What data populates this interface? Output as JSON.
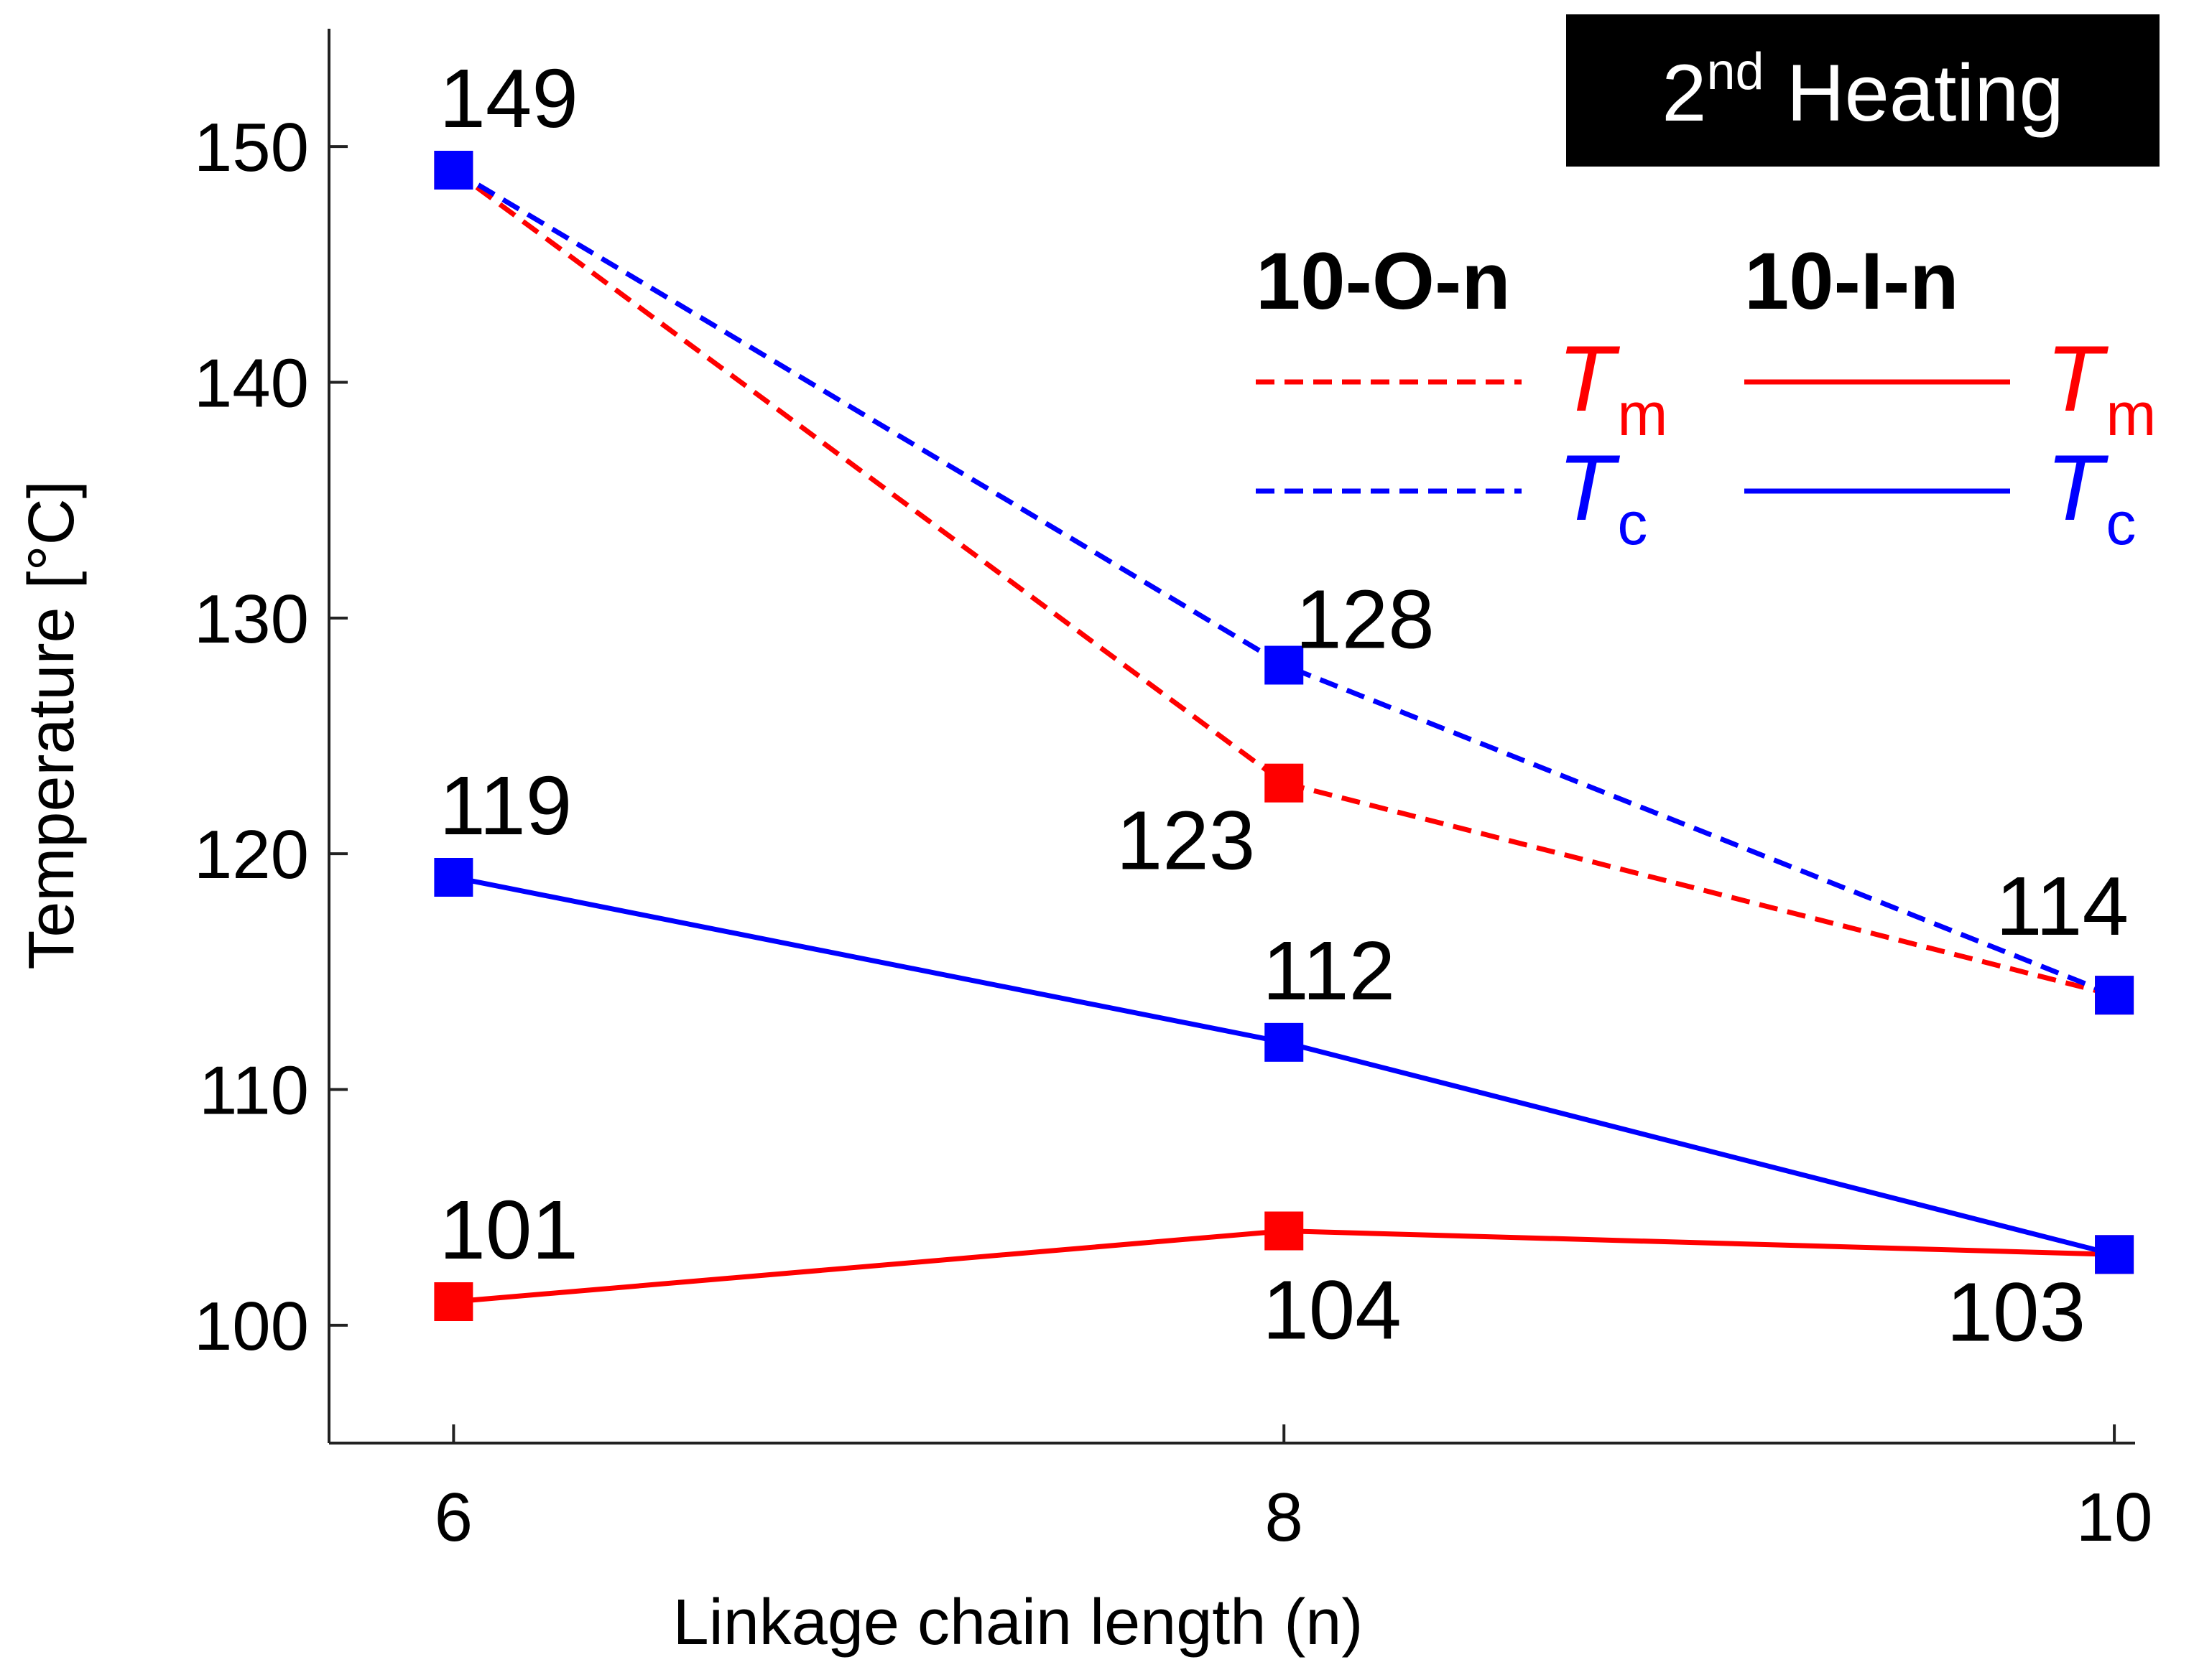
{
  "chart_data": {
    "type": "line",
    "title": {
      "text": "2",
      "sup": "nd",
      "rest": " Heating"
    },
    "xlabel": "Linkage chain length (n)",
    "ylabel": "Temperature [°C]",
    "x": [
      6,
      8,
      10
    ],
    "xlim": [
      5.7,
      10.05
    ],
    "ylim": [
      95,
      155
    ],
    "xticks": [
      "6",
      "8",
      "10"
    ],
    "yticks": [
      "100",
      "110",
      "120",
      "130",
      "140",
      "150"
    ],
    "grid": false,
    "legend_position": "top-right",
    "legend": {
      "groups": [
        {
          "title": "10-O-n",
          "dash": "dashed",
          "entries": [
            {
              "symbol": "T",
              "sub": "m",
              "color": "#ff0000"
            },
            {
              "symbol": "T",
              "sub": "c",
              "color": "#0000ff"
            }
          ]
        },
        {
          "title": "10-I-n",
          "dash": "solid",
          "entries": [
            {
              "symbol": "T",
              "sub": "m",
              "color": "#ff0000"
            },
            {
              "symbol": "T",
              "sub": "c",
              "color": "#0000ff"
            }
          ]
        }
      ]
    },
    "series": [
      {
        "group": "10-O-n",
        "quantity": "Tm",
        "color": "#ff0000",
        "dash": "dashed",
        "values": [
          149,
          123,
          114
        ],
        "labels": [
          "",
          "123",
          ""
        ],
        "label_pos": [
          "",
          "below-left",
          ""
        ]
      },
      {
        "group": "10-O-n",
        "quantity": "Tc",
        "color": "#0000ff",
        "dash": "dashed",
        "values": [
          149,
          128,
          114
        ],
        "labels": [
          "149",
          "128",
          "114"
        ],
        "label_pos": [
          "above",
          "above-right",
          "above-left"
        ]
      },
      {
        "group": "10-I-n",
        "quantity": "Tm",
        "color": "#ff0000",
        "dash": "solid",
        "values": [
          101,
          104,
          103
        ],
        "labels": [
          "101",
          "104",
          "103"
        ],
        "label_pos": [
          "above",
          "below",
          "below-left"
        ]
      },
      {
        "group": "10-I-n",
        "quantity": "Tc",
        "color": "#0000ff",
        "dash": "solid",
        "values": [
          119,
          112,
          103
        ],
        "labels": [
          "119",
          "112",
          ""
        ],
        "label_pos": [
          "above",
          "above",
          ""
        ]
      }
    ]
  }
}
